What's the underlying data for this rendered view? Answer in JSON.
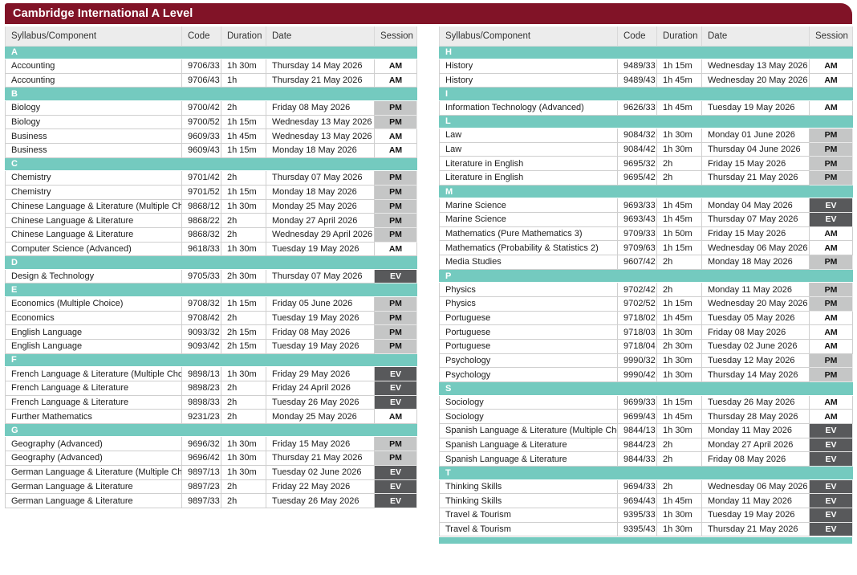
{
  "title": "Cambridge International A Level",
  "columns": [
    "Syllabus/Component",
    "Code",
    "Duration",
    "Date",
    "Session"
  ],
  "colors": {
    "banner_maroon": "#811327",
    "section_teal": "#74cabf",
    "header_gray": "#ececec",
    "session_am_bg": "#ffffff",
    "session_pm_bg": "#c5c6c6",
    "session_ev_bg": "#58595b"
  },
  "left_table": {
    "sections": [
      {
        "letter": "A",
        "rows": [
          {
            "syllabus": "Accounting",
            "code": "9706/33",
            "duration": "1h 30m",
            "date": "Thursday 14 May 2026",
            "session": "AM"
          },
          {
            "syllabus": "Accounting",
            "code": "9706/43",
            "duration": "1h",
            "date": "Thursday 21 May 2026",
            "session": "AM"
          }
        ]
      },
      {
        "letter": "B",
        "rows": [
          {
            "syllabus": "Biology",
            "code": "9700/42",
            "duration": "2h",
            "date": "Friday 08 May 2026",
            "session": "PM"
          },
          {
            "syllabus": "Biology",
            "code": "9700/52",
            "duration": "1h 15m",
            "date": "Wednesday 13 May 2026",
            "session": "PM"
          },
          {
            "syllabus": "Business",
            "code": "9609/33",
            "duration": "1h 45m",
            "date": "Wednesday 13 May 2026",
            "session": "AM"
          },
          {
            "syllabus": "Business",
            "code": "9609/43",
            "duration": "1h 15m",
            "date": "Monday 18 May 2026",
            "session": "AM"
          }
        ]
      },
      {
        "letter": "C",
        "rows": [
          {
            "syllabus": "Chemistry",
            "code": "9701/42",
            "duration": "2h",
            "date": "Thursday 07 May 2026",
            "session": "PM"
          },
          {
            "syllabus": "Chemistry",
            "code": "9701/52",
            "duration": "1h 15m",
            "date": "Monday 18 May 2026",
            "session": "PM"
          },
          {
            "syllabus": "Chinese Language & Literature (Multiple Choice)",
            "code": "9868/12",
            "duration": "1h 30m",
            "date": "Monday 25 May 2026",
            "session": "PM"
          },
          {
            "syllabus": "Chinese Language & Literature",
            "code": "9868/22",
            "duration": "2h",
            "date": "Monday 27 April 2026",
            "session": "PM"
          },
          {
            "syllabus": "Chinese Language & Literature",
            "code": "9868/32",
            "duration": "2h",
            "date": "Wednesday 29 April 2026",
            "session": "PM"
          },
          {
            "syllabus": "Computer Science (Advanced)",
            "code": "9618/33",
            "duration": "1h 30m",
            "date": "Tuesday 19 May 2026",
            "session": "AM"
          }
        ]
      },
      {
        "letter": "D",
        "rows": [
          {
            "syllabus": "Design & Technology",
            "code": "9705/33",
            "duration": "2h 30m",
            "date": "Thursday 07 May 2026",
            "session": "EV"
          }
        ]
      },
      {
        "letter": "E",
        "rows": [
          {
            "syllabus": "Economics (Multiple Choice)",
            "code": "9708/32",
            "duration": "1h 15m",
            "date": "Friday 05 June 2026",
            "session": "PM"
          },
          {
            "syllabus": "Economics",
            "code": "9708/42",
            "duration": "2h",
            "date": "Tuesday 19 May 2026",
            "session": "PM"
          },
          {
            "syllabus": "English Language",
            "code": "9093/32",
            "duration": "2h 15m",
            "date": "Friday 08 May 2026",
            "session": "PM"
          },
          {
            "syllabus": "English Language",
            "code": "9093/42",
            "duration": "2h 15m",
            "date": "Tuesday 19 May 2026",
            "session": "PM"
          }
        ]
      },
      {
        "letter": "F",
        "rows": [
          {
            "syllabus": "French Language & Literature (Multiple Choice)",
            "code": "9898/13",
            "duration": "1h 30m",
            "date": "Friday 29 May 2026",
            "session": "EV"
          },
          {
            "syllabus": "French Language & Literature",
            "code": "9898/23",
            "duration": "2h",
            "date": "Friday 24 April 2026",
            "session": "EV"
          },
          {
            "syllabus": "French Language & Literature",
            "code": "9898/33",
            "duration": "2h",
            "date": "Tuesday 26 May 2026",
            "session": "EV"
          },
          {
            "syllabus": "Further Mathematics",
            "code": "9231/23",
            "duration": "2h",
            "date": "Monday 25 May 2026",
            "session": "AM"
          }
        ]
      },
      {
        "letter": "G",
        "rows": [
          {
            "syllabus": "Geography (Advanced)",
            "code": "9696/32",
            "duration": "1h 30m",
            "date": "Friday 15 May 2026",
            "session": "PM"
          },
          {
            "syllabus": "Geography (Advanced)",
            "code": "9696/42",
            "duration": "1h 30m",
            "date": "Thursday 21 May 2026",
            "session": "PM"
          },
          {
            "syllabus": "German Language & Literature (Multiple Choice)",
            "code": "9897/13",
            "duration": "1h 30m",
            "date": "Tuesday 02 June 2026",
            "session": "EV"
          },
          {
            "syllabus": "German Language & Literature",
            "code": "9897/23",
            "duration": "2h",
            "date": "Friday 22 May 2026",
            "session": "EV"
          },
          {
            "syllabus": "German Language & Literature",
            "code": "9897/33",
            "duration": "2h",
            "date": "Tuesday 26 May 2026",
            "session": "EV"
          }
        ]
      }
    ],
    "has_partial_bottom_section_bar": false
  },
  "right_table": {
    "sections": [
      {
        "letter": "H",
        "rows": [
          {
            "syllabus": "History",
            "code": "9489/33",
            "duration": "1h 15m",
            "date": "Wednesday 13 May 2026",
            "session": "AM"
          },
          {
            "syllabus": "History",
            "code": "9489/43",
            "duration": "1h 45m",
            "date": "Wednesday 20 May 2026",
            "session": "AM"
          }
        ]
      },
      {
        "letter": "I",
        "rows": [
          {
            "syllabus": "Information Technology (Advanced)",
            "code": "9626/33",
            "duration": "1h 45m",
            "date": "Tuesday 19 May 2026",
            "session": "AM"
          }
        ]
      },
      {
        "letter": "L",
        "rows": [
          {
            "syllabus": "Law",
            "code": "9084/32",
            "duration": "1h 30m",
            "date": "Monday 01 June 2026",
            "session": "PM"
          },
          {
            "syllabus": "Law",
            "code": "9084/42",
            "duration": "1h 30m",
            "date": "Thursday 04 June 2026",
            "session": "PM"
          },
          {
            "syllabus": "Literature in English",
            "code": "9695/32",
            "duration": "2h",
            "date": "Friday 15 May 2026",
            "session": "PM"
          },
          {
            "syllabus": "Literature in English",
            "code": "9695/42",
            "duration": "2h",
            "date": "Thursday 21 May 2026",
            "session": "PM"
          }
        ]
      },
      {
        "letter": "M",
        "rows": [
          {
            "syllabus": "Marine Science",
            "code": "9693/33",
            "duration": "1h 45m",
            "date": "Monday 04 May 2026",
            "session": "EV"
          },
          {
            "syllabus": "Marine Science",
            "code": "9693/43",
            "duration": "1h 45m",
            "date": "Thursday 07 May 2026",
            "session": "EV"
          },
          {
            "syllabus": "Mathematics (Pure Mathematics 3)",
            "code": "9709/33",
            "duration": "1h 50m",
            "date": "Friday 15 May 2026",
            "session": "AM"
          },
          {
            "syllabus": "Mathematics (Probability & Statistics 2)",
            "code": "9709/63",
            "duration": "1h 15m",
            "date": "Wednesday 06 May 2026",
            "session": "AM"
          },
          {
            "syllabus": "Media Studies",
            "code": "9607/42",
            "duration": "2h",
            "date": "Monday 18 May 2026",
            "session": "PM"
          }
        ]
      },
      {
        "letter": "P",
        "rows": [
          {
            "syllabus": "Physics",
            "code": "9702/42",
            "duration": "2h",
            "date": "Monday 11 May 2026",
            "session": "PM"
          },
          {
            "syllabus": "Physics",
            "code": "9702/52",
            "duration": "1h 15m",
            "date": "Wednesday 20 May 2026",
            "session": "PM"
          },
          {
            "syllabus": "Portuguese",
            "code": "9718/02",
            "duration": "1h 45m",
            "date": "Tuesday 05 May 2026",
            "session": "AM"
          },
          {
            "syllabus": "Portuguese",
            "code": "9718/03",
            "duration": "1h 30m",
            "date": "Friday 08 May 2026",
            "session": "AM"
          },
          {
            "syllabus": "Portuguese",
            "code": "9718/04",
            "duration": "2h 30m",
            "date": "Tuesday 02 June 2026",
            "session": "AM"
          },
          {
            "syllabus": "Psychology",
            "code": "9990/32",
            "duration": "1h 30m",
            "date": "Tuesday 12 May 2026",
            "session": "PM"
          },
          {
            "syllabus": "Psychology",
            "code": "9990/42",
            "duration": "1h 30m",
            "date": "Thursday 14 May 2026",
            "session": "PM"
          }
        ]
      },
      {
        "letter": "S",
        "rows": [
          {
            "syllabus": "Sociology",
            "code": "9699/33",
            "duration": "1h 15m",
            "date": "Tuesday 26 May 2026",
            "session": "AM"
          },
          {
            "syllabus": "Sociology",
            "code": "9699/43",
            "duration": "1h 45m",
            "date": "Thursday 28 May 2026",
            "session": "AM"
          },
          {
            "syllabus": "Spanish Language & Literature (Multiple Choice)",
            "code": "9844/13",
            "duration": "1h 30m",
            "date": "Monday 11 May 2026",
            "session": "EV"
          },
          {
            "syllabus": "Spanish Language & Literature",
            "code": "9844/23",
            "duration": "2h",
            "date": "Monday 27 April 2026",
            "session": "EV"
          },
          {
            "syllabus": "Spanish Language & Literature",
            "code": "9844/33",
            "duration": "2h",
            "date": "Friday 08 May 2026",
            "session": "EV"
          }
        ]
      },
      {
        "letter": "T",
        "rows": [
          {
            "syllabus": "Thinking Skills",
            "code": "9694/33",
            "duration": "2h",
            "date": "Wednesday 06 May 2026",
            "session": "EV"
          },
          {
            "syllabus": "Thinking Skills",
            "code": "9694/43",
            "duration": "1h 45m",
            "date": "Monday 11 May 2026",
            "session": "EV"
          },
          {
            "syllabus": "Travel & Tourism",
            "code": "9395/33",
            "duration": "1h 30m",
            "date": "Tuesday 19 May 2026",
            "session": "EV"
          },
          {
            "syllabus": "Travel & Tourism",
            "code": "9395/43",
            "duration": "1h 30m",
            "date": "Thursday 21 May 2026",
            "session": "EV"
          }
        ]
      }
    ],
    "has_partial_bottom_section_bar": true
  }
}
